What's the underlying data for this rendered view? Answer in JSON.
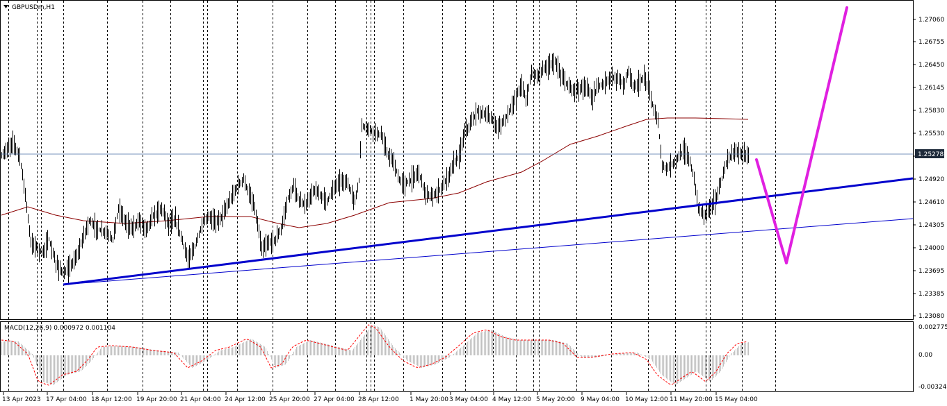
{
  "window": {
    "symbol_label": "GBPUSDm,H1",
    "menu_icon": "triangle-down-icon"
  },
  "price_axis": {
    "labels": [
      "1.27060",
      "1.26755",
      "1.26450",
      "1.26145",
      "1.25830",
      "1.25530",
      "1.25225",
      "1.24920",
      "1.24610",
      "1.24305",
      "1.24000",
      "1.23695",
      "1.23385",
      "1.23080"
    ],
    "current_price": "1.25278"
  },
  "macd": {
    "label": "MACD(12,26,9) 0.000972 0.001104",
    "axis_labels": [
      "0.002775",
      "0.00",
      "-0.003245"
    ]
  },
  "time_axis": {
    "labels": [
      "13 Apr 2023",
      "17 Apr 04:00",
      "18 Apr 12:00",
      "19 Apr 20:00",
      "21 Apr 04:00",
      "24 Apr 12:00",
      "25 Apr 20:00",
      "27 Apr 04:00",
      "28 Apr 12:00",
      "1 May 20:00",
      "3 May 04:00",
      "4 May 12:00",
      "5 May 20:00",
      "9 May 04:00",
      "10 May 12:00",
      "11 May 20:00",
      "15 May 04:00"
    ]
  },
  "colors": {
    "candles": "#000000",
    "moving_average": "#8b0000",
    "trendline": "#0000cc",
    "forecast_zigzag": "#e020e0",
    "macd_histogram": "#c0c0c0",
    "macd_signal": "#ff0000",
    "grid_separators": "#000000",
    "current_price_line": "#4a6fa5"
  },
  "chart_data": {
    "type": "candlestick",
    "instrument": "GBPUSDm",
    "timeframe": "H1",
    "ylim": [
      1.2308,
      1.2736
    ],
    "approx_close_path": [
      {
        "t": "13 Apr 2023",
        "price": 1.2508
      },
      {
        "t": "17 Apr 04:00",
        "price": 1.237
      },
      {
        "t": "18 Apr 12:00",
        "price": 1.243
      },
      {
        "t": "19 Apr 20:00",
        "price": 1.2437
      },
      {
        "t": "21 Apr 04:00",
        "price": 1.242
      },
      {
        "t": "24 Apr 12:00",
        "price": 1.247
      },
      {
        "t": "25 Apr 20:00",
        "price": 1.2445
      },
      {
        "t": "27 Apr 04:00",
        "price": 1.2475
      },
      {
        "t": "28 Apr 12:00",
        "price": 1.254
      },
      {
        "t": "1 May 20:00",
        "price": 1.2468
      },
      {
        "t": "3 May 04:00",
        "price": 1.2575
      },
      {
        "t": "4 May 12:00",
        "price": 1.2605
      },
      {
        "t": "5 May 20:00",
        "price": 1.2648
      },
      {
        "t": "9 May 04:00",
        "price": 1.262
      },
      {
        "t": "10 May 12:00",
        "price": 1.26
      },
      {
        "t": "11 May 20:00",
        "price": 1.247
      },
      {
        "t": "15 May 04:00",
        "price": 1.2528
      }
    ]
  }
}
